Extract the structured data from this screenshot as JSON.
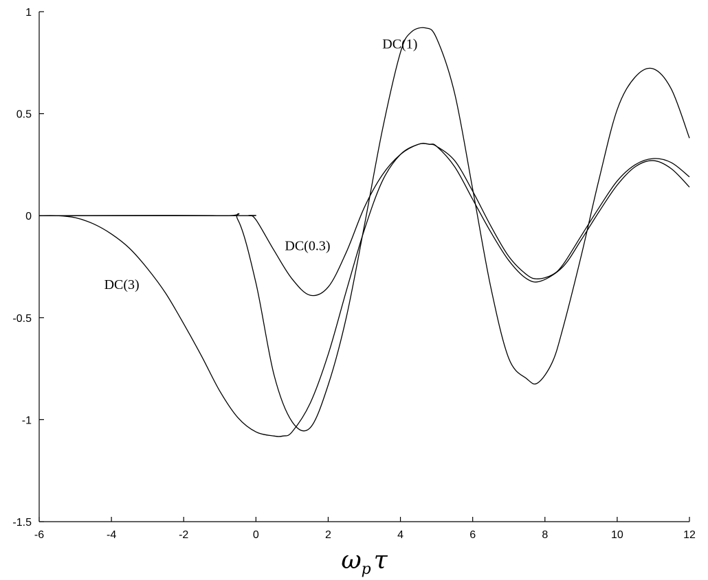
{
  "chart_data": {
    "type": "line",
    "title": "",
    "xlabel": "ω_p τ",
    "xlabel_parts": {
      "main": "ω",
      "sub": "p",
      "tail": "τ"
    },
    "ylabel": "",
    "xlim": [
      -6,
      12
    ],
    "ylim": [
      -1.5,
      1
    ],
    "x_ticks": [
      -6,
      -4,
      -2,
      0,
      2,
      4,
      6,
      8,
      10,
      12
    ],
    "x_tick_labels": [
      "-6",
      "-4",
      "-2",
      "0",
      "2",
      "4",
      "6",
      "8",
      "10",
      "12"
    ],
    "y_ticks": [
      -1.5,
      -1,
      -0.5,
      0,
      0.5,
      1
    ],
    "y_tick_labels": [
      "-1.5",
      "-1",
      "-0.5",
      "0",
      "0.5",
      "1"
    ],
    "grid": false,
    "legend": "none",
    "series": [
      {
        "name": "DC(1)",
        "annotation": {
          "text": "DC(1)",
          "x": 3.5,
          "y": 0.82
        },
        "x": [
          -6,
          -1,
          -0.5,
          0,
          0.5,
          1,
          1.5,
          2,
          2.5,
          3,
          3.5,
          4,
          4.3,
          4.7,
          5,
          5.5,
          6,
          6.5,
          7,
          7.5,
          7.8,
          8.2,
          8.5,
          9,
          9.5,
          10,
          10.5,
          11,
          11.5,
          12
        ],
        "y": [
          0,
          0,
          -0.02,
          -0.33,
          -0.78,
          -1.01,
          -1.04,
          -0.83,
          -0.5,
          -0.05,
          0.42,
          0.8,
          0.9,
          0.92,
          0.87,
          0.6,
          0.13,
          -0.35,
          -0.7,
          -0.8,
          -0.82,
          -0.72,
          -0.55,
          -0.2,
          0.18,
          0.52,
          0.68,
          0.72,
          0.62,
          0.38
        ]
      },
      {
        "name": "DC(0.3)",
        "annotation": {
          "text": "DC(0.3)",
          "x": 0.8,
          "y": -0.17
        },
        "x": [
          -6,
          -0.5,
          -0.2,
          0,
          0.5,
          1,
          1.5,
          2,
          2.5,
          3,
          3.5,
          4,
          4.5,
          4.8,
          5,
          5.5,
          6,
          6.5,
          7,
          7.5,
          7.8,
          8.2,
          8.5,
          9,
          9.5,
          10,
          10.5,
          11,
          11.5,
          12
        ],
        "y": [
          0,
          0,
          0,
          -0.02,
          -0.17,
          -0.31,
          -0.39,
          -0.35,
          -0.18,
          0.04,
          0.2,
          0.3,
          0.35,
          0.35,
          0.34,
          0.27,
          0.12,
          -0.05,
          -0.2,
          -0.29,
          -0.31,
          -0.29,
          -0.24,
          -0.1,
          0.04,
          0.17,
          0.25,
          0.28,
          0.26,
          0.19
        ]
      },
      {
        "name": "DC(3)",
        "annotation": {
          "text": "DC(3)",
          "x": -4.2,
          "y": -0.36
        },
        "x": [
          -6,
          -5.5,
          -5,
          -4.5,
          -4,
          -3.5,
          -3,
          -2.5,
          -2,
          -1.5,
          -1,
          -0.5,
          0,
          0.5,
          0.75,
          1,
          1.5,
          2,
          2.5,
          3,
          3.5,
          4,
          4.5,
          4.8,
          5,
          5.5,
          6,
          6.5,
          7,
          7.5,
          7.9,
          8.5,
          9,
          9.5,
          10,
          10.5,
          11,
          11.5,
          12
        ],
        "y": [
          0,
          0,
          -0.01,
          -0.04,
          -0.09,
          -0.16,
          -0.26,
          -0.38,
          -0.53,
          -0.69,
          -0.86,
          -0.99,
          -1.06,
          -1.08,
          -1.08,
          -1.06,
          -0.92,
          -0.68,
          -0.37,
          -0.07,
          0.17,
          0.3,
          0.35,
          0.35,
          0.34,
          0.24,
          0.08,
          -0.08,
          -0.22,
          -0.31,
          -0.32,
          -0.25,
          -0.12,
          0.02,
          0.15,
          0.24,
          0.27,
          0.23,
          0.14
        ]
      }
    ]
  }
}
